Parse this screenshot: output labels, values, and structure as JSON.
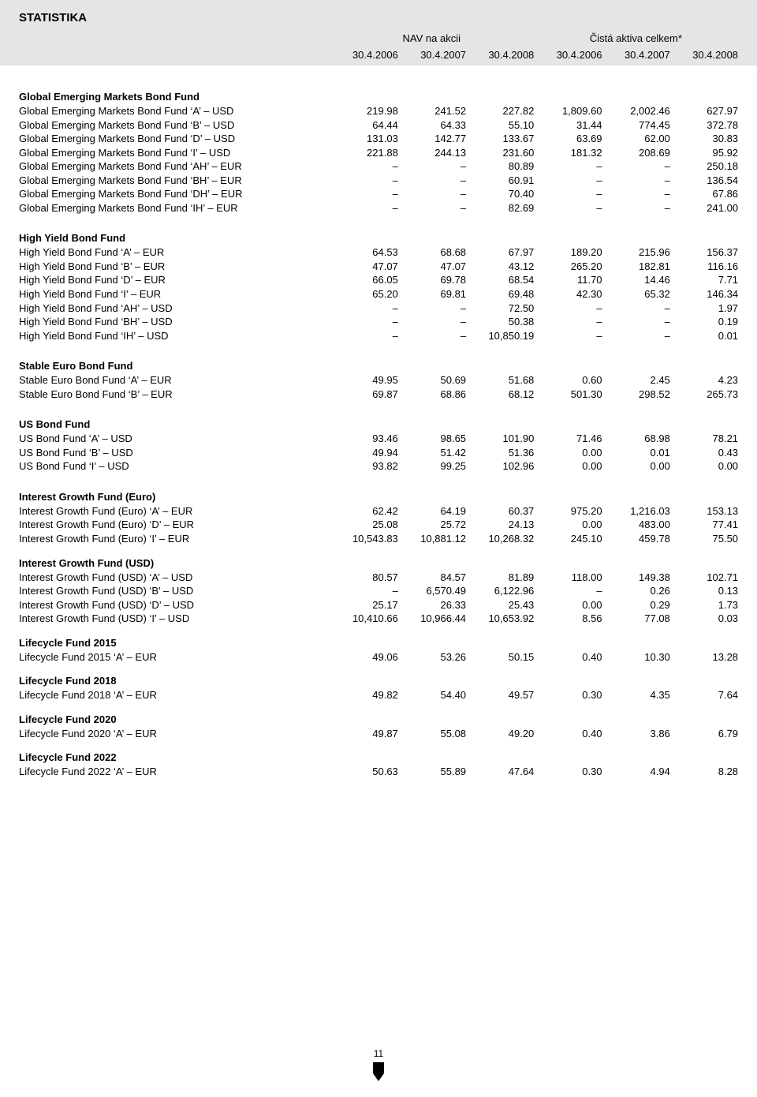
{
  "title": "STATISTIKA",
  "group_headers": [
    "NAV na akcii",
    "Čistá aktiva celkem*"
  ],
  "date_headers": [
    "30.4.2006",
    "30.4.2007",
    "30.4.2008",
    "30.4.2006",
    "30.4.2007",
    "30.4.2008"
  ],
  "page_number": "11",
  "sections": [
    {
      "title": "Global Emerging Markets Bond Fund",
      "rows": [
        {
          "label": "Global Emerging Markets Bond Fund 'A' – USD",
          "v": [
            "219.98",
            "241.52",
            "227.82",
            "1,809.60",
            "2,002.46",
            "627.97"
          ]
        },
        {
          "label": "Global Emerging Markets Bond Fund 'B' – USD",
          "v": [
            "64.44",
            "64.33",
            "55.10",
            "31.44",
            "774.45",
            "372.78"
          ]
        },
        {
          "label": "Global Emerging Markets Bond Fund 'D' – USD",
          "v": [
            "131.03",
            "142.77",
            "133.67",
            "63.69",
            "62.00",
            "30.83"
          ]
        },
        {
          "label": "Global Emerging Markets Bond Fund 'I' – USD",
          "v": [
            "221.88",
            "244.13",
            "231.60",
            "181.32",
            "208.69",
            "95.92"
          ]
        },
        {
          "label": "Global Emerging Markets Bond Fund 'AH' – EUR",
          "v": [
            "–",
            "–",
            "80.89",
            "–",
            "–",
            "250.18"
          ]
        },
        {
          "label": "Global Emerging Markets Bond Fund  'BH' – EUR",
          "v": [
            "–",
            "–",
            "60.91",
            "–",
            "–",
            "136.54"
          ]
        },
        {
          "label": "Global Emerging Markets Bond Fund 'DH' – EUR",
          "v": [
            "–",
            "–",
            "70.40",
            "–",
            "–",
            "67.86"
          ]
        },
        {
          "label": "Global Emerging Markets Bond Fund 'IH' – EUR",
          "v": [
            "–",
            "–",
            "82.69",
            "–",
            "–",
            "241.00"
          ]
        }
      ]
    },
    {
      "title": "High Yield Bond Fund",
      "rows": [
        {
          "label": "High Yield Bond Fund 'A' – EUR",
          "v": [
            "64.53",
            "68.68",
            "67.97",
            "189.20",
            "215.96",
            "156.37"
          ]
        },
        {
          "label": "High Yield Bond Fund 'B' – EUR",
          "v": [
            "47.07",
            "47.07",
            "43.12",
            "265.20",
            "182.81",
            "116.16"
          ]
        },
        {
          "label": "High Yield Bond Fund 'D' – EUR",
          "v": [
            "66.05",
            "69.78",
            "68.54",
            "11.70",
            "14.46",
            "7.71"
          ]
        },
        {
          "label": "High Yield Bond Fund 'I' – EUR",
          "v": [
            "65.20",
            "69.81",
            "69.48",
            "42.30",
            "65.32",
            "146.34"
          ]
        },
        {
          "label": "High Yield Bond Fund 'AH' – USD",
          "v": [
            "–",
            "–",
            "72.50",
            "–",
            "–",
            "1.97"
          ]
        },
        {
          "label": "High Yield Bond Fund 'BH' – USD",
          "v": [
            "–",
            "–",
            "50.38",
            "–",
            "–",
            "0.19"
          ]
        },
        {
          "label": "High Yield Bond Fund 'IH' – USD",
          "v": [
            "–",
            "–",
            "10,850.19",
            "–",
            "–",
            "0.01"
          ]
        }
      ]
    },
    {
      "title": "Stable Euro Bond Fund",
      "rows": [
        {
          "label": "Stable Euro Bond Fund 'A' – EUR",
          "v": [
            "49.95",
            "50.69",
            "51.68",
            "0.60",
            "2.45",
            "4.23"
          ]
        },
        {
          "label": "Stable Euro Bond Fund 'B' – EUR",
          "v": [
            "69.87",
            "68.86",
            "68.12",
            "501.30",
            "298.52",
            "265.73"
          ]
        }
      ]
    },
    {
      "title": "US Bond Fund",
      "rows": [
        {
          "label": "US Bond Fund 'A' – USD",
          "v": [
            "93.46",
            "98.65",
            "101.90",
            "71.46",
            "68.98",
            "78.21"
          ]
        },
        {
          "label": "US Bond Fund 'B' – USD",
          "v": [
            "49.94",
            "51.42",
            "51.36",
            "0.00",
            "0.01",
            "0.43"
          ]
        },
        {
          "label": "US Bond Fund 'I' – USD",
          "v": [
            "93.82",
            "99.25",
            "102.96",
            "0.00",
            "0.00",
            "0.00"
          ]
        }
      ]
    },
    {
      "title": "Interest Growth Fund (Euro)",
      "rows": [
        {
          "label": "Interest Growth Fund (Euro) 'A' – EUR",
          "v": [
            "62.42",
            "64.19",
            "60.37",
            "975.20",
            "1,216.03",
            "153.13"
          ]
        },
        {
          "label": "Interest Growth Fund (Euro) 'D' – EUR",
          "v": [
            "25.08",
            "25.72",
            "24.13",
            "0.00",
            "483.00",
            "77.41"
          ]
        },
        {
          "label": "Interest Growth Fund (Euro) 'I' – EUR",
          "v": [
            "10,543.83",
            "10,881.12",
            "10,268.32",
            "245.10",
            "459.78",
            "75.50"
          ]
        }
      ]
    },
    {
      "title": "Interest Growth Fund (USD)",
      "tight": true,
      "rows": [
        {
          "label": "Interest Growth Fund (USD) 'A' – USD",
          "v": [
            "80.57",
            "84.57",
            "81.89",
            "118.00",
            "149.38",
            "102.71"
          ]
        },
        {
          "label": "Interest Growth Fund (USD) 'B' – USD",
          "v": [
            "–",
            "6,570.49",
            "6,122.96",
            "–",
            "0.26",
            "0.13"
          ]
        },
        {
          "label": "Interest Growth Fund (USD) 'D' – USD",
          "v": [
            "25.17",
            "26.33",
            "25.43",
            "0.00",
            "0.29",
            "1.73"
          ]
        },
        {
          "label": "Interest Growth Fund (USD) 'I' – USD",
          "v": [
            "10,410.66",
            "10,966.44",
            "10,653.92",
            "8.56",
            "77.08",
            "0.03"
          ]
        }
      ]
    },
    {
      "title": "Lifecycle Fund 2015",
      "tight": true,
      "rows": [
        {
          "label": "Lifecycle Fund 2015 'A' – EUR",
          "v": [
            "49.06",
            "53.26",
            "50.15",
            "0.40",
            "10.30",
            "13.28"
          ]
        }
      ]
    },
    {
      "title": "Lifecycle Fund 2018",
      "tight": true,
      "rows": [
        {
          "label": "Lifecycle Fund 2018 'A' – EUR",
          "v": [
            "49.82",
            "54.40",
            "49.57",
            "0.30",
            "4.35",
            "7.64"
          ]
        }
      ]
    },
    {
      "title": "Lifecycle Fund 2020",
      "tight": true,
      "rows": [
        {
          "label": "Lifecycle Fund 2020 'A' – EUR",
          "v": [
            "49.87",
            "55.08",
            "49.20",
            "0.40",
            "3.86",
            "6.79"
          ]
        }
      ]
    },
    {
      "title": "Lifecycle Fund 2022",
      "tight": true,
      "rows": [
        {
          "label": "Lifecycle Fund 2022 'A' – EUR",
          "v": [
            "50.63",
            "55.89",
            "47.64",
            "0.30",
            "4.94",
            "8.28"
          ]
        }
      ]
    }
  ]
}
